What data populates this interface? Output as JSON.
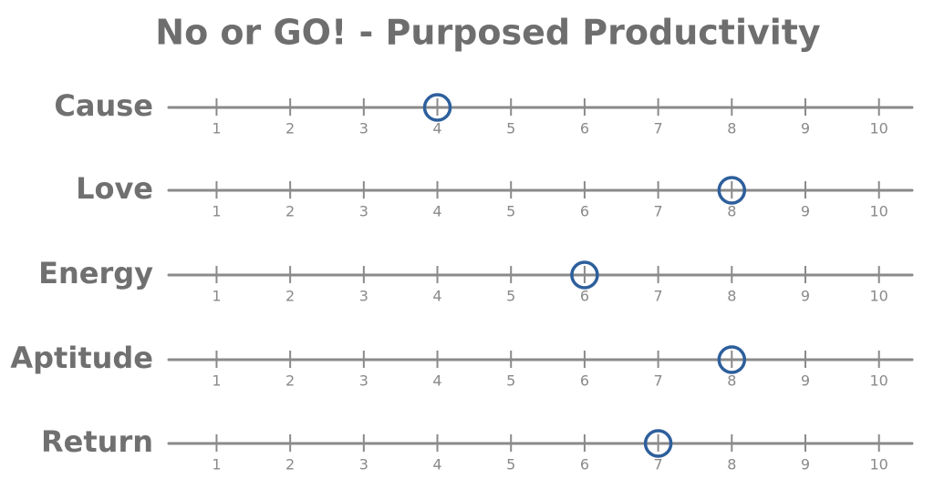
{
  "chart_data": {
    "type": "scale",
    "title": "No or GO! - Purposed Productivity",
    "categories": [
      "Cause",
      "Love",
      "Energy",
      "Aptitude",
      "Return"
    ],
    "values": [
      4,
      8,
      6,
      8,
      7
    ],
    "color": "#2e5f9c",
    "xlim": [
      0.35,
      10.45
    ],
    "xticks": [
      1,
      2,
      3,
      4,
      5,
      6,
      7,
      8,
      9,
      10
    ]
  }
}
